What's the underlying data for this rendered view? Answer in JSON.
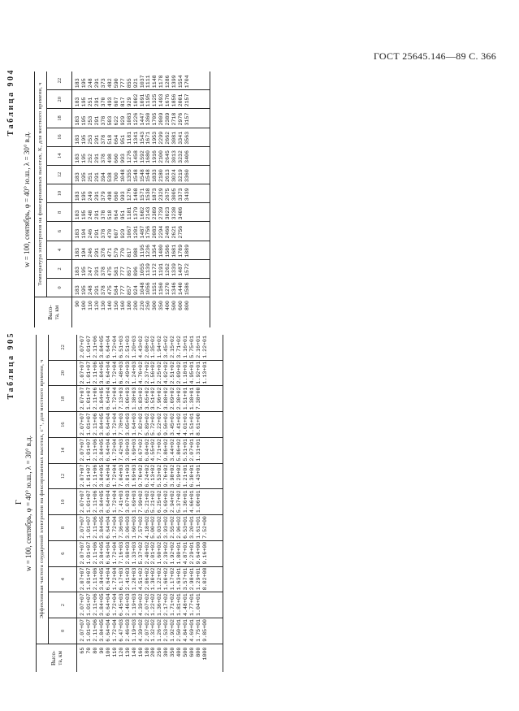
{
  "header": {
    "code": "ГОСТ 25645.146—89",
    "page": "С. 366"
  },
  "t904": {
    "label": "Таблица 904",
    "title": "w = 100, сентябрь, φ = 40° ю.ш., λ = 30° в.д.",
    "subtitle": "Температура электронов на фиксированных высотах, K, для местного времени, ч",
    "height_header": "Высо-\nта, км",
    "times": [
      "0",
      "2",
      "4",
      "6",
      "8",
      "10",
      "12",
      "14",
      "16",
      "18",
      "20",
      "22"
    ],
    "rows": [
      [
        "90",
        "183",
        "183",
        "183",
        "183",
        "183",
        "183",
        "183",
        "183",
        "183",
        "183",
        "183",
        "183"
      ],
      [
        "100",
        "195",
        "195",
        "194",
        "194",
        "195",
        "195",
        "195",
        "195",
        "195",
        "195",
        "195",
        "195"
      ],
      [
        "110",
        "248",
        "247",
        "246",
        "246",
        "248",
        "249",
        "251",
        "252",
        "253",
        "253",
        "251",
        "248"
      ],
      [
        "120",
        "291",
        "291",
        "291",
        "291",
        "291",
        "291",
        "291",
        "291",
        "291",
        "291",
        "291",
        "291"
      ],
      [
        "130",
        "378",
        "378",
        "378",
        "378",
        "378",
        "379",
        "394",
        "378",
        "378",
        "378",
        "370",
        "373"
      ],
      [
        "140",
        "475",
        "475",
        "471",
        "470",
        "518",
        "498",
        "538",
        "498",
        "518",
        "503",
        "493",
        "482"
      ],
      [
        "150",
        "584",
        "581",
        "579",
        "607",
        "664",
        "660",
        "700",
        "660",
        "664",
        "622",
        "607",
        "590"
      ],
      [
        "160",
        "777",
        "777",
        "770",
        "929",
        "951",
        "993",
        "1048",
        "993",
        "951",
        "929",
        "817",
        "777"
      ],
      [
        "180",
        "857",
        "857",
        "817",
        "1067",
        "1181",
        "1276",
        "1355",
        "1276",
        "1181",
        "1083",
        "929",
        "855"
      ],
      [
        "200",
        "924",
        "896",
        "988",
        "1201",
        "1379",
        "1468",
        "1548",
        "1458",
        "1341",
        "1226",
        "1002",
        "921"
      ],
      [
        "220",
        "1048",
        "1055",
        "1195",
        "1487",
        "1682",
        "1571",
        "1548",
        "1592",
        "1543",
        "1447",
        "1091",
        "1037"
      ],
      [
        "250",
        "1056",
        "1139",
        "1236",
        "1756",
        "2143",
        "1538",
        "1548",
        "1680",
        "1671",
        "1360",
        "1195",
        "1111"
      ],
      [
        "300",
        "1151",
        "1172",
        "1354",
        "2083",
        "2389",
        "1873",
        "1833",
        "1916",
        "1953",
        "1705",
        "1325",
        "1148"
      ],
      [
        "350",
        "1160",
        "1191",
        "1480",
        "2294",
        "2739",
        "2329",
        "2180",
        "2100",
        "2299",
        "2009",
        "1493",
        "1178"
      ],
      [
        "400",
        "1270",
        "1262",
        "1586",
        "2468",
        "3023",
        "2675",
        "2613",
        "2645",
        "2662",
        "2389",
        "1676",
        "1286"
      ],
      [
        "500",
        "1346",
        "1339",
        "1681",
        "2621",
        "3230",
        "3005",
        "3024",
        "3013",
        "3081",
        "2718",
        "1856",
        "1399"
      ],
      [
        "600",
        "1440",
        "1487",
        "1789",
        "2756",
        "3406",
        "3373",
        "3219",
        "3232",
        "3341",
        "2976",
        "2001",
        "1554"
      ],
      [
        "800",
        "1586",
        "1572",
        "1889",
        "",
        "",
        "3439",
        "3360",
        "3406",
        "3563",
        "3157",
        "2157",
        "1704"
      ]
    ]
  },
  "t905": {
    "label": "Таблица 905",
    "note": "Г",
    "title": "w = 100, сентябрь, φ = 40° ю.ш., λ = 30° в.д.",
    "subtitle": "Эффективная частота соударений электронов на фиксированных высотах, с⁻¹, для местного времени, ч",
    "height_header": "Высо-\nта, км",
    "times": [
      "0",
      "2",
      "4",
      "6",
      "8",
      "10",
      "12",
      "14",
      "16",
      "18",
      "20",
      "22"
    ],
    "rows": [
      [
        "65",
        "2.07+07",
        "2.07+07",
        "2.07+07",
        "2.07+07",
        "2.07+07",
        "2.07+07",
        "2.07+07",
        "2.07+07",
        "2.07+07",
        "2.07+07",
        "2.07+07",
        "2.07+07"
      ],
      [
        "70",
        "1.01+07",
        "1.01+07",
        "1.01+07",
        "1.01+07",
        "1.01+07",
        "1.01+07",
        "1.01+07",
        "1.01+07",
        "1.01+07",
        "1.01+07",
        "1.01+07",
        "1.01+07"
      ],
      [
        "80",
        "2.11+06",
        "2.11+06",
        "2.11+06",
        "2.11+06",
        "2.11+06",
        "2.11+06",
        "2.11+06",
        "2.11+06",
        "2.11+06",
        "2.11+06",
        "2.11+06",
        "2.11+06"
      ],
      [
        "90",
        "3.84+05",
        "3.84+05",
        "3.84+05",
        "3.84+05",
        "3.84+05",
        "3.84+05",
        "3.84+05",
        "3.84+05",
        "3.84+05",
        "3.84+05",
        "3.84+05",
        "3.84+05"
      ],
      [
        "100",
        "6.64+04",
        "6.64+04",
        "6.64+04",
        "6.64+04",
        "6.64+04",
        "6.64+04",
        "6.64+04",
        "6.64+04",
        "6.64+04",
        "6.64+04",
        "6.64+04",
        "6.64+04"
      ],
      [
        "110",
        "1.72+04",
        "1.72+04",
        "1.72+04",
        "1.72+04",
        "1.72+04",
        "1.72+04",
        "1.72+04",
        "1.72+04",
        "1.72+04",
        "1.72+04",
        "1.72+04",
        "1.72+04"
      ],
      [
        "120",
        "6.47+03",
        "6.45+03",
        "6.17+03",
        "7.16+03",
        "7.36+03",
        "7.41+03",
        "7.04+03",
        "7.42+03",
        "7.78+03",
        "7.13+03",
        "6.48+03",
        "6.51+03"
      ],
      [
        "130",
        "2.46+03",
        "2.46+03",
        "2.41+03",
        "2.68+03",
        "3.06+03",
        "3.07+03",
        "3.01+03",
        "3.09+03",
        "3.05+03",
        "3.06+03",
        "2.49+03",
        "2.51+03"
      ],
      [
        "140",
        "1.19+03",
        "1.19+03",
        "1.20+03",
        "1.33+03",
        "1.60+03",
        "1.69+03",
        "1.69+03",
        "1.69+03",
        "1.64+03",
        "1.38+03",
        "1.24+03",
        "1.20+03"
      ],
      [
        "160",
        "4.39+02",
        "4.39+02",
        "4.51+02",
        "5.37+02",
        "7.57+02",
        "7.99+02",
        "9.76+02",
        "8.67+02",
        "7.82+02",
        "5.83+02",
        "4.76+02",
        "4.43+02"
      ],
      [
        "180",
        "2.07+02",
        "2.07+02",
        "2.06+02",
        "2.40+02",
        "4.18+02",
        "5.21+02",
        "6.24+02",
        "6.04+02",
        "5.89+02",
        "3.65+02",
        "2.37+02",
        "2.08+02"
      ],
      [
        "200",
        "1.32+02",
        "1.22+02",
        "1.30+02",
        "2.01+02",
        "5.00+02",
        "5.21+02",
        "4.13+02",
        "4.55+02",
        "5.72+02",
        "3.51+02",
        "1.56+02",
        "1.35+02"
      ],
      [
        "250",
        "1.26+02",
        "1.36+02",
        "1.22+02",
        "1.60+02",
        "5.03+02",
        "6.25+02",
        "5.53+02",
        "7.71+02",
        "6.22+02",
        "7.96+02",
        "2.25+02",
        "1.94+02"
      ],
      [
        "300",
        "2.53+02",
        "2.17+02",
        "1.60+02",
        "2.39+02",
        "3.93+02",
        "9.69+02",
        "9.76+02",
        "9.86+02",
        "9.56+02",
        "3.88+02",
        "4.02+02",
        "3.45+02"
      ],
      [
        "350",
        "1.92+02",
        "1.71+02",
        "1.17+02",
        "1.92+02",
        "2.55+02",
        "2.94+02",
        "3.98+02",
        "3.44+02",
        "3.45+02",
        "2.09+02",
        "2.51+02",
        "2.15+02"
      ],
      [
        "400",
        "2.50+01",
        "1.81+01",
        "1.63+01",
        "1.80+01",
        "2.96+02",
        "5.37+02",
        "6.29+02",
        "5.86+02",
        "4.41+02",
        "2.30+02",
        "2.09+02",
        "3.71+02"
      ],
      [
        "500",
        "4.84+01",
        "4.48+01",
        "3.57+01",
        "4.87+01",
        "6.53+01",
        "1.36+01",
        "1.21+01",
        "5.51+01",
        "4.01+01",
        "1.51+01",
        "1.18+01",
        "1.16+01"
      ],
      [
        "600",
        "4.69+01",
        "1.77+01",
        "2.98+01",
        "2.29+01",
        "3.20+01",
        "4.66+01",
        "6.30+01",
        "2.07+01",
        "1.51+01",
        "1.38+01",
        "4.95+01",
        "5.75+01"
      ],
      [
        "800",
        "1.75+01",
        "1.04+01",
        "1.29+01",
        "9.64+00",
        "1.61+01",
        "1.06+01",
        "1.43+01",
        "1.31+01",
        "8.61+00",
        "7.38+00",
        "1.92+01",
        "2.16+01"
      ],
      [
        "1000",
        "9.85+00",
        "",
        "8.02+00",
        "9.16+00",
        "7.52+00",
        "",
        "",
        "",
        "",
        "",
        "1.13+01",
        "1.22+01"
      ]
    ]
  }
}
